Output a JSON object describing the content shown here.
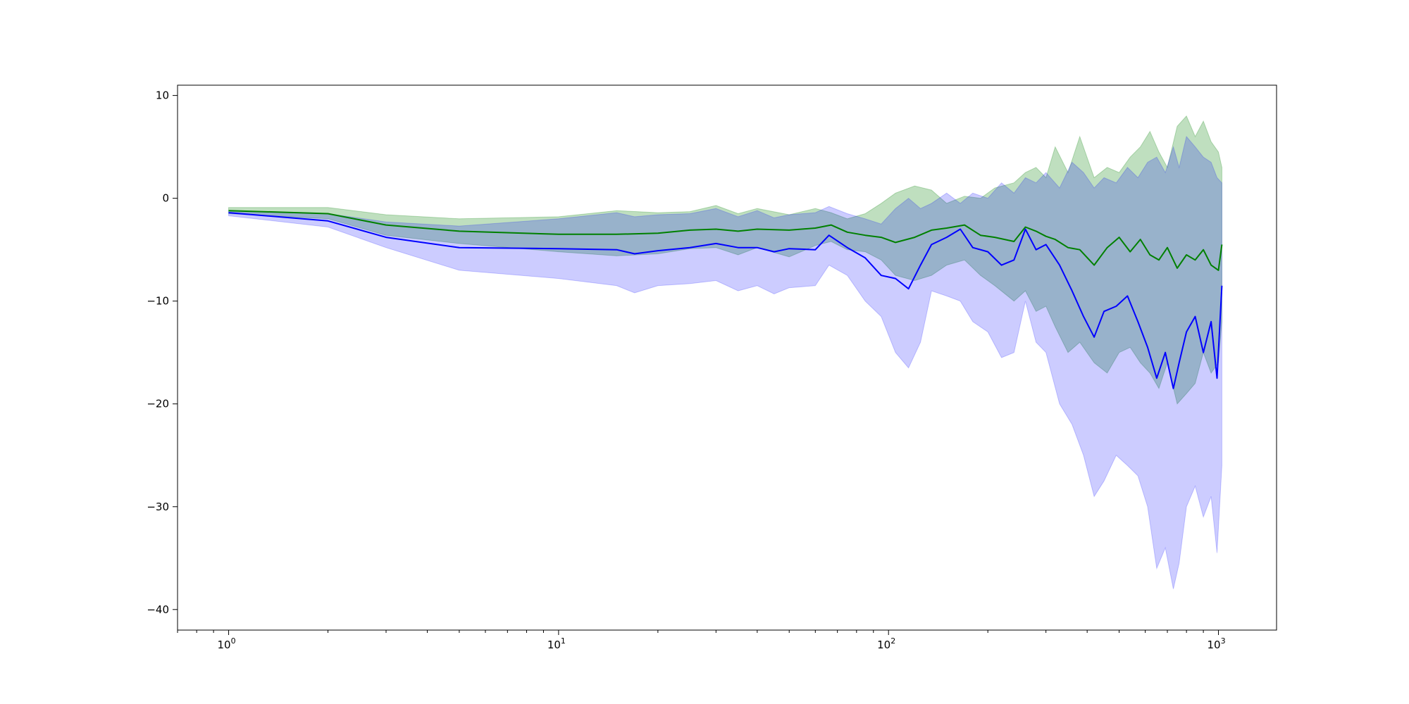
{
  "chart_data": {
    "type": "line",
    "title": "",
    "xlabel": "",
    "ylabel": "",
    "xscale": "log",
    "xlim": [
      0.7,
      1500
    ],
    "ylim": [
      -42,
      11
    ],
    "grid": false,
    "legend": "none",
    "x_ticks": [
      {
        "value": 1,
        "base": "10",
        "exp": "0"
      },
      {
        "value": 10,
        "base": "10",
        "exp": "1"
      },
      {
        "value": 100,
        "base": "10",
        "exp": "2"
      },
      {
        "value": 1000,
        "base": "10",
        "exp": "3"
      }
    ],
    "y_ticks": [
      {
        "value": 10,
        "label": "10"
      },
      {
        "value": 0,
        "label": "0"
      },
      {
        "value": -10,
        "label": "−10"
      },
      {
        "value": -20,
        "label": "−20"
      },
      {
        "value": -30,
        "label": "−30"
      },
      {
        "value": -40,
        "label": "−40"
      }
    ],
    "series": [
      {
        "color": "#008000",
        "band_color": "#008000",
        "band_opacity": 0.25,
        "points": [
          [
            1,
            -1.2,
            -0.9,
            -1.5
          ],
          [
            2,
            -1.5,
            -0.9,
            -2.0
          ],
          [
            3,
            -2.6,
            -1.6,
            -3.6
          ],
          [
            5,
            -3.2,
            -2.0,
            -4.4
          ],
          [
            10,
            -3.5,
            -1.8,
            -5.2
          ],
          [
            15,
            -3.5,
            -1.2,
            -5.6
          ],
          [
            20,
            -3.4,
            -1.4,
            -5.4
          ],
          [
            25,
            -3.1,
            -1.3,
            -4.9
          ],
          [
            30,
            -3.0,
            -0.7,
            -4.8
          ],
          [
            35,
            -3.2,
            -1.5,
            -5.5
          ],
          [
            40,
            -3.0,
            -1.0,
            -4.8
          ],
          [
            50,
            -3.1,
            -1.6,
            -5.7
          ],
          [
            60,
            -2.9,
            -1.0,
            -4.6
          ],
          [
            67,
            -2.6,
            -1.4,
            -4.2
          ],
          [
            75,
            -3.3,
            -2.0,
            -5.0
          ],
          [
            85,
            -3.6,
            -1.5,
            -5.2
          ],
          [
            95,
            -3.8,
            -0.5,
            -6.0
          ],
          [
            105,
            -4.3,
            0.5,
            -7.5
          ],
          [
            120,
            -3.8,
            1.2,
            -8.0
          ],
          [
            135,
            -3.1,
            0.8,
            -7.5
          ],
          [
            150,
            -2.9,
            -0.5,
            -6.5
          ],
          [
            170,
            -2.6,
            0.2,
            -6.0
          ],
          [
            190,
            -3.6,
            0.0,
            -7.5
          ],
          [
            210,
            -3.8,
            1.0,
            -8.5
          ],
          [
            240,
            -4.2,
            1.5,
            -10.0
          ],
          [
            260,
            -2.8,
            2.5,
            -9.0
          ],
          [
            280,
            -3.2,
            3.0,
            -11.0
          ],
          [
            300,
            -3.7,
            2.0,
            -10.5
          ],
          [
            320,
            -4.0,
            5.0,
            -12.5
          ],
          [
            350,
            -4.8,
            2.5,
            -15.0
          ],
          [
            380,
            -5.0,
            6.0,
            -14.0
          ],
          [
            420,
            -6.5,
            2.0,
            -16.0
          ],
          [
            460,
            -4.8,
            3.0,
            -17.0
          ],
          [
            500,
            -3.8,
            2.5,
            -15.0
          ],
          [
            540,
            -5.2,
            4.0,
            -14.5
          ],
          [
            580,
            -4.0,
            5.0,
            -16.0
          ],
          [
            620,
            -5.5,
            6.5,
            -17.0
          ],
          [
            660,
            -6.0,
            4.5,
            -18.5
          ],
          [
            700,
            -4.8,
            3.0,
            -16.0
          ],
          [
            750,
            -6.8,
            7.0,
            -20.0
          ],
          [
            800,
            -5.5,
            8.0,
            -19.0
          ],
          [
            850,
            -6.0,
            6.0,
            -18.0
          ],
          [
            900,
            -5.0,
            7.5,
            -15.0
          ],
          [
            950,
            -6.5,
            5.5,
            -17.0
          ],
          [
            1000,
            -7.0,
            4.5,
            -16.0
          ],
          [
            1024,
            -4.5,
            3.0,
            -12.0
          ]
        ]
      },
      {
        "color": "#0000ff",
        "band_color": "#0000ff",
        "band_opacity": 0.2,
        "points": [
          [
            1,
            -1.4,
            -1.2,
            -1.7
          ],
          [
            2,
            -2.2,
            -1.5,
            -2.8
          ],
          [
            3,
            -3.8,
            -2.3,
            -4.8
          ],
          [
            5,
            -4.8,
            -2.7,
            -7.0
          ],
          [
            10,
            -4.9,
            -2.0,
            -7.8
          ],
          [
            15,
            -5.0,
            -1.4,
            -8.5
          ],
          [
            17,
            -5.4,
            -1.8,
            -9.2
          ],
          [
            20,
            -5.1,
            -1.6,
            -8.5
          ],
          [
            25,
            -4.8,
            -1.5,
            -8.3
          ],
          [
            30,
            -4.4,
            -1.0,
            -8.0
          ],
          [
            35,
            -4.8,
            -1.8,
            -9.0
          ],
          [
            40,
            -4.8,
            -1.2,
            -8.5
          ],
          [
            45,
            -5.2,
            -1.9,
            -9.3
          ],
          [
            50,
            -4.9,
            -1.6,
            -8.7
          ],
          [
            60,
            -5.0,
            -1.4,
            -8.5
          ],
          [
            66,
            -3.6,
            -0.8,
            -6.5
          ],
          [
            75,
            -4.8,
            -1.5,
            -7.5
          ],
          [
            85,
            -5.8,
            -2.0,
            -10.0
          ],
          [
            95,
            -7.5,
            -2.5,
            -11.5
          ],
          [
            105,
            -7.8,
            -1.0,
            -15.0
          ],
          [
            115,
            -8.8,
            0.0,
            -16.5
          ],
          [
            125,
            -6.5,
            -1.0,
            -14.0
          ],
          [
            135,
            -4.5,
            -0.5,
            -9.0
          ],
          [
            150,
            -3.8,
            0.5,
            -9.5
          ],
          [
            165,
            -3.0,
            -0.5,
            -10.0
          ],
          [
            180,
            -4.8,
            0.5,
            -12.0
          ],
          [
            200,
            -5.2,
            0.0,
            -13.0
          ],
          [
            220,
            -6.5,
            1.5,
            -15.5
          ],
          [
            240,
            -6.0,
            0.5,
            -15.0
          ],
          [
            260,
            -3.0,
            2.0,
            -10.0
          ],
          [
            280,
            -5.0,
            1.5,
            -14.0
          ],
          [
            300,
            -4.5,
            2.5,
            -15.0
          ],
          [
            330,
            -6.5,
            1.0,
            -20.0
          ],
          [
            360,
            -9.0,
            3.5,
            -22.0
          ],
          [
            390,
            -11.5,
            2.5,
            -25.0
          ],
          [
            420,
            -13.5,
            1.0,
            -29.0
          ],
          [
            450,
            -11.0,
            2.0,
            -27.5
          ],
          [
            490,
            -10.5,
            1.5,
            -25.0
          ],
          [
            530,
            -9.5,
            3.0,
            -26.0
          ],
          [
            570,
            -12.0,
            2.0,
            -27.0
          ],
          [
            610,
            -14.5,
            3.5,
            -30.0
          ],
          [
            650,
            -17.5,
            4.0,
            -36.0
          ],
          [
            690,
            -15.0,
            2.5,
            -34.0
          ],
          [
            730,
            -18.5,
            5.0,
            -38.0
          ],
          [
            760,
            -16.0,
            3.0,
            -35.5
          ],
          [
            800,
            -13.0,
            6.0,
            -30.0
          ],
          [
            850,
            -11.5,
            5.0,
            -28.0
          ],
          [
            900,
            -15.0,
            4.0,
            -31.0
          ],
          [
            950,
            -12.0,
            3.5,
            -29.0
          ],
          [
            990,
            -17.5,
            2.0,
            -34.5
          ],
          [
            1024,
            -8.5,
            1.5,
            -26.0
          ]
        ]
      }
    ]
  }
}
